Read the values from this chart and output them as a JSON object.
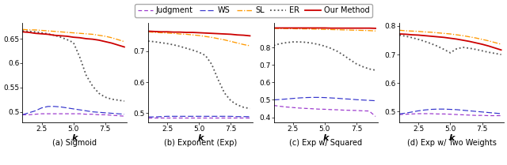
{
  "x": [
    1,
    1.5,
    2,
    2.5,
    3,
    3.5,
    4,
    4.5,
    5,
    5.5,
    6,
    6.5,
    7,
    7.5,
    8,
    8.5,
    9
  ],
  "subplots": [
    {
      "title": "(a) Sigmoid",
      "judgment": [
        0.494,
        0.494,
        0.495,
        0.496,
        0.496,
        0.496,
        0.496,
        0.496,
        0.496,
        0.496,
        0.495,
        0.495,
        0.494,
        0.494,
        0.493,
        0.492,
        0.491
      ],
      "ws": [
        0.494,
        0.498,
        0.502,
        0.508,
        0.511,
        0.511,
        0.51,
        0.508,
        0.506,
        0.504,
        0.502,
        0.5,
        0.499,
        0.498,
        0.497,
        0.496,
        0.495
      ],
      "sl": [
        0.669,
        0.668,
        0.668,
        0.667,
        0.666,
        0.665,
        0.664,
        0.663,
        0.662,
        0.661,
        0.66,
        0.659,
        0.657,
        0.655,
        0.652,
        0.648,
        0.644
      ],
      "er": [
        0.666,
        0.665,
        0.664,
        0.662,
        0.66,
        0.657,
        0.653,
        0.648,
        0.642,
        0.612,
        0.575,
        0.553,
        0.538,
        0.53,
        0.526,
        0.524,
        0.522
      ],
      "our": [
        0.664,
        0.663,
        0.661,
        0.66,
        0.659,
        0.657,
        0.656,
        0.655,
        0.653,
        0.652,
        0.65,
        0.649,
        0.647,
        0.644,
        0.641,
        0.637,
        0.633
      ],
      "ylim": [
        0.478,
        0.682
      ],
      "yticks": [
        0.5,
        0.55,
        0.6,
        0.65
      ]
    },
    {
      "title": "(b) Exponent (Exp)",
      "judgment": [
        0.487,
        0.487,
        0.487,
        0.487,
        0.487,
        0.487,
        0.487,
        0.487,
        0.487,
        0.487,
        0.487,
        0.487,
        0.487,
        0.487,
        0.487,
        0.487,
        0.487
      ],
      "ws": [
        0.488,
        0.488,
        0.489,
        0.49,
        0.49,
        0.49,
        0.49,
        0.49,
        0.49,
        0.49,
        0.49,
        0.49,
        0.49,
        0.49,
        0.489,
        0.489,
        0.489
      ],
      "sl": [
        0.762,
        0.76,
        0.759,
        0.758,
        0.757,
        0.755,
        0.754,
        0.752,
        0.75,
        0.747,
        0.744,
        0.74,
        0.736,
        0.731,
        0.726,
        0.721,
        0.717
      ],
      "er": [
        0.732,
        0.73,
        0.727,
        0.724,
        0.72,
        0.715,
        0.709,
        0.703,
        0.696,
        0.686,
        0.657,
        0.608,
        0.565,
        0.54,
        0.527,
        0.519,
        0.515
      ],
      "our": [
        0.764,
        0.763,
        0.762,
        0.762,
        0.761,
        0.761,
        0.76,
        0.76,
        0.759,
        0.758,
        0.757,
        0.756,
        0.755,
        0.754,
        0.752,
        0.751,
        0.749
      ],
      "ylim": [
        0.47,
        0.79
      ],
      "yticks": [
        0.5,
        0.6,
        0.7
      ]
    },
    {
      "title": "(c) Exp w/ Squared",
      "judgment": [
        0.468,
        0.463,
        0.459,
        0.456,
        0.453,
        0.451,
        0.449,
        0.447,
        0.446,
        0.444,
        0.443,
        0.441,
        0.44,
        0.439,
        0.437,
        0.436,
        0.405
      ],
      "ws": [
        0.5,
        0.502,
        0.505,
        0.508,
        0.511,
        0.513,
        0.514,
        0.514,
        0.513,
        0.511,
        0.509,
        0.506,
        0.504,
        0.501,
        0.499,
        0.497,
        0.495
      ],
      "sl": [
        0.91,
        0.909,
        0.909,
        0.908,
        0.907,
        0.907,
        0.906,
        0.905,
        0.904,
        0.903,
        0.902,
        0.901,
        0.9,
        0.899,
        0.898,
        0.897,
        0.895
      ],
      "er": [
        0.812,
        0.822,
        0.828,
        0.832,
        0.832,
        0.83,
        0.825,
        0.818,
        0.808,
        0.795,
        0.778,
        0.755,
        0.73,
        0.706,
        0.69,
        0.677,
        0.67
      ],
      "our": [
        0.912,
        0.912,
        0.912,
        0.912,
        0.912,
        0.912,
        0.912,
        0.912,
        0.912,
        0.911,
        0.911,
        0.911,
        0.911,
        0.911,
        0.911,
        0.911,
        0.91
      ],
      "ylim": [
        0.37,
        0.94
      ],
      "yticks": [
        0.4,
        0.5,
        0.6,
        0.7,
        0.8
      ]
    },
    {
      "title": "(d) Exp w/ Two Weights",
      "judgment": [
        0.49,
        0.491,
        0.492,
        0.493,
        0.493,
        0.493,
        0.492,
        0.492,
        0.491,
        0.49,
        0.489,
        0.488,
        0.487,
        0.487,
        0.486,
        0.486,
        0.486
      ],
      "ws": [
        0.492,
        0.495,
        0.499,
        0.503,
        0.506,
        0.508,
        0.509,
        0.509,
        0.508,
        0.507,
        0.505,
        0.503,
        0.501,
        0.499,
        0.497,
        0.495,
        0.493
      ],
      "sl": [
        0.785,
        0.783,
        0.782,
        0.781,
        0.779,
        0.778,
        0.776,
        0.774,
        0.772,
        0.769,
        0.766,
        0.762,
        0.758,
        0.753,
        0.748,
        0.742,
        0.736
      ],
      "er": [
        0.768,
        0.764,
        0.759,
        0.753,
        0.746,
        0.738,
        0.729,
        0.718,
        0.706,
        0.72,
        0.725,
        0.722,
        0.718,
        0.713,
        0.708,
        0.704,
        0.7
      ],
      "our": [
        0.772,
        0.771,
        0.769,
        0.768,
        0.766,
        0.764,
        0.762,
        0.76,
        0.757,
        0.754,
        0.75,
        0.746,
        0.741,
        0.736,
        0.73,
        0.723,
        0.716
      ],
      "ylim": [
        0.462,
        0.81
      ],
      "yticks": [
        0.5,
        0.6,
        0.7,
        0.8
      ]
    }
  ],
  "colors": {
    "judgment": "#9933cc",
    "ws": "#3333cc",
    "sl": "#ff9900",
    "er": "#555555",
    "our": "#cc0000"
  },
  "xlabel": "k",
  "xticks": [
    2.5,
    5.0,
    7.5
  ],
  "background": "#ffffff"
}
